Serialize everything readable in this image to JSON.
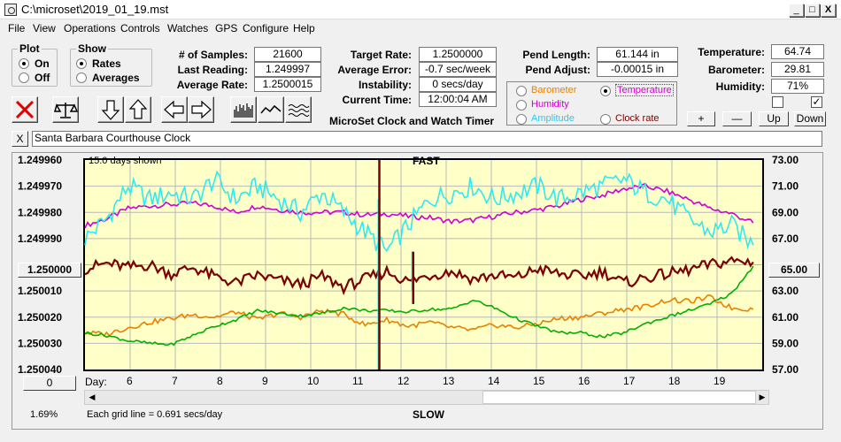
{
  "window": {
    "title": "C:\\microset\\2019_01_19.mst",
    "min": "_",
    "max": "□",
    "close": "X"
  },
  "menu": [
    "File",
    "View",
    "Operations",
    "Controls",
    "Watches",
    "GPS",
    "Configure",
    "Help"
  ],
  "plot_group": {
    "title": "Plot",
    "options": [
      "On",
      "Off"
    ],
    "selected": "On"
  },
  "show_group": {
    "title": "Show",
    "options": [
      "Rates",
      "Averages"
    ],
    "selected": "Rates"
  },
  "stats": {
    "samples_label": "# of Samples:",
    "samples": "21600",
    "last_label": "Last Reading:",
    "last": "1.249997",
    "avg_rate_label": "Average Rate:",
    "avg_rate": "1.2500015",
    "target_label": "Target Rate:",
    "target": "1.2500000",
    "avg_error_label": "Average Error:",
    "avg_error": "-0.7 sec/week",
    "instab_label": "Instability:",
    "instab": "0 secs/day",
    "time_label": "Current Time:",
    "time": "12:00:04 AM",
    "pend_len_label": "Pend Length:",
    "pend_len": "61.144 in",
    "pend_adj_label": "Pend Adjust:",
    "pend_adj": "-0.00015 in",
    "temp_label": "Temperature:",
    "temp": "64.74",
    "baro_label": "Barometer:",
    "baro": "29.81",
    "hum_label": "Humidity:",
    "hum": "71%"
  },
  "app_label": "MicroSet Clock and Watch Timer",
  "plot_select": {
    "options": [
      "Barometer",
      "Temperature",
      "Humidity",
      "Amplitude",
      "Clock rate"
    ],
    "selected": "Temperature"
  },
  "scale_buttons": [
    "+",
    "—",
    "Up",
    "Down"
  ],
  "checkbox_left": false,
  "checkbox_right": true,
  "clock_close": "X",
  "clock_name": "Santa Barbara Courthouse Clock",
  "colors": {
    "plot_bg": "#ffffc8",
    "rate": "#7b0000",
    "temperature": "#d000d0",
    "humidity": "#30e8f0",
    "barometer": "#e88000",
    "amplitude": "#00b000"
  },
  "chart_data": {
    "type": "line",
    "days_shown": "15.0 days shown",
    "top_label": "FAST",
    "bottom_label": "SLOW",
    "grid_note": "Each grid line = 0.691 secs/day",
    "percent": "1.69%",
    "left_ticks": [
      "1.249960",
      "1.249970",
      "1.249980",
      "1.249990",
      "1.250000",
      "1.250010",
      "1.250020",
      "1.250030",
      "1.250040"
    ],
    "right_ticks": [
      "73.00",
      "71.00",
      "69.00",
      "67.00",
      "65.00",
      "63.00",
      "61.00",
      "59.00",
      "57.00"
    ],
    "left_button": "1.250000",
    "right_button": "65.00",
    "zero_button": "0",
    "day_label": "Day:",
    "days": [
      6,
      7,
      8,
      9,
      10,
      11,
      12,
      13,
      14,
      15,
      16,
      17,
      18,
      19
    ],
    "x_range": [
      5,
      20
    ],
    "series": [
      {
        "name": "Temperature",
        "color_key": "temperature",
        "y": [
          68.0,
          68.5,
          69.3,
          69.5,
          69.6,
          69.7,
          69.5,
          69.0,
          69.5,
          69.2,
          69.0,
          69.0,
          69.0,
          68.8,
          68.9,
          68.7,
          68.6,
          68.3,
          68.4,
          68.7,
          69.0,
          69.2,
          69.5,
          70.0,
          70.3,
          70.8,
          71.0,
          70.6,
          70.0,
          69.3,
          68.9,
          68.2
        ]
      },
      {
        "name": "Humidity",
        "color_key": "humidity",
        "y": [
          67.0,
          68.5,
          71.0,
          70.0,
          70.5,
          70.0,
          71.5,
          70.0,
          71.0,
          70.0,
          69.0,
          70.5,
          69.0,
          67.5,
          66.0,
          68.0,
          70.0,
          70.5,
          71.0,
          70.0,
          70.5,
          71.0,
          70.0,
          70.5,
          71.0,
          71.5,
          70.5,
          70.0,
          68.5,
          67.5,
          68.0,
          66.5
        ]
      },
      {
        "name": "Clock rate",
        "color_key": "rate",
        "y": [
          64.7,
          65.1,
          64.8,
          65.0,
          64.3,
          64.8,
          64.1,
          63.6,
          64.2,
          63.8,
          63.5,
          64.1,
          63.3,
          63.9,
          64.5,
          63.7,
          64.2,
          64.5,
          63.9,
          64.2,
          64.0,
          64.7,
          64.3,
          64.1,
          64.5,
          63.6,
          64.0,
          64.3,
          64.6,
          65.0,
          65.3,
          65.2
        ]
      },
      {
        "name": "Barometer",
        "color_key": "barometer",
        "y": [
          59.8,
          59.7,
          60.2,
          60.6,
          60.9,
          61.2,
          61.0,
          61.4,
          60.8,
          61.3,
          61.0,
          61.5,
          61.2,
          60.4,
          60.8,
          60.3,
          60.6,
          60.2,
          60.0,
          60.4,
          60.2,
          60.5,
          60.9,
          61.0,
          61.3,
          61.6,
          61.8,
          62.3,
          62.2,
          62.5,
          61.7,
          61.6
        ]
      },
      {
        "name": "Amplitude",
        "color_key": "amplitude",
        "y": [
          59.8,
          59.6,
          59.2,
          59.0,
          58.9,
          59.6,
          60.3,
          60.8,
          61.5,
          61.3,
          61.1,
          61.3,
          61.7,
          61.5,
          61.5,
          61.4,
          61.6,
          61.6,
          62.3,
          61.7,
          60.9,
          60.3,
          59.8,
          59.8,
          59.5,
          59.8,
          60.5,
          61.0,
          61.5,
          62.0,
          62.8,
          64.9
        ]
      }
    ],
    "spikes": [
      {
        "day": 11.5,
        "rate": [
          73,
          57
        ],
        "hum": [
          57,
          70
        ]
      },
      {
        "day": 12.25,
        "rate": [
          66,
          62
        ],
        "hum": [
          66,
          63
        ]
      }
    ]
  }
}
